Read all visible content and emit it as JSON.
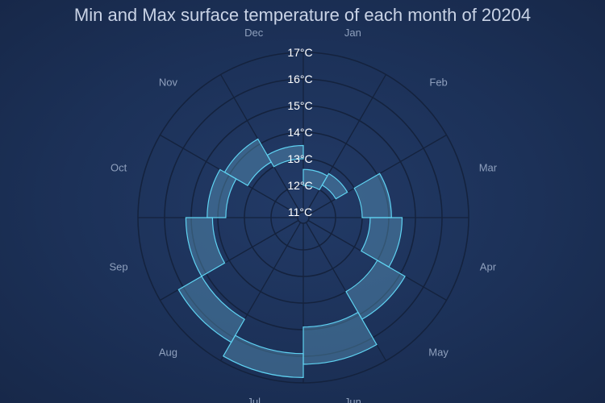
{
  "chart_data": {
    "type": "bar",
    "subtype": "polar-range",
    "title": "Min and Max surface temperature of each month of 20204",
    "categories": [
      "Jan",
      "Feb",
      "Mar",
      "Apr",
      "May",
      "Jun",
      "Jul",
      "Aug",
      "Sep",
      "Oct",
      "Nov",
      "Dec"
    ],
    "series": [
      {
        "min": [
          12.0,
          12.2,
          13.0,
          13.3,
          14.0,
          14.9,
          15.9,
          15.2,
          14.2,
          13.7,
          13.2,
          13.0
        ],
        "max": [
          12.6,
          12.7,
          14.1,
          14.5,
          15.2,
          16.3,
          16.8,
          16.2,
          15.2,
          14.4,
          14.2,
          13.5
        ]
      }
    ],
    "radial_axis": {
      "min": 11,
      "max": 17,
      "ticks": [
        11,
        12,
        13,
        14,
        15,
        16,
        17
      ],
      "tick_labels": [
        "11°C",
        "12°C",
        "13°C",
        "14°C",
        "15°C",
        "16°C",
        "17°C"
      ]
    },
    "grid": true,
    "colors": {
      "background": "#1e3259",
      "bar_fill": "#6eb4d7",
      "bar_stroke": "#5fd3f3",
      "grid": "#14223d",
      "month_label": "#8fa0bd",
      "tick_label": "#ffffff",
      "title": "#c9d3e6"
    }
  }
}
